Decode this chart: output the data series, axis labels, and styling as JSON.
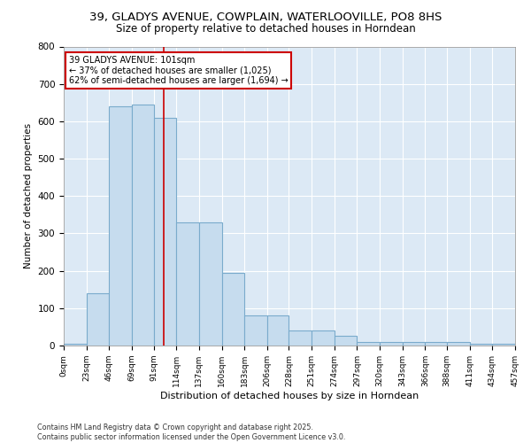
{
  "title_line1": "39, GLADYS AVENUE, COWPLAIN, WATERLOOVILLE, PO8 8HS",
  "title_line2": "Size of property relative to detached houses in Horndean",
  "xlabel": "Distribution of detached houses by size in Horndean",
  "ylabel": "Number of detached properties",
  "bin_edges": [
    0,
    23,
    46,
    69,
    91,
    114,
    137,
    160,
    183,
    206,
    228,
    251,
    274,
    297,
    320,
    343,
    366,
    388,
    411,
    434,
    457
  ],
  "bar_heights": [
    5,
    140,
    640,
    645,
    610,
    330,
    330,
    195,
    80,
    80,
    40,
    40,
    25,
    10,
    10,
    10,
    10,
    10,
    5,
    5
  ],
  "bar_color": "#c6dcee",
  "bar_edge_color": "#7aabcc",
  "red_line_x": 101,
  "annotation_text": "39 GLADYS AVENUE: 101sqm\n← 37% of detached houses are smaller (1,025)\n62% of semi-detached houses are larger (1,694) →",
  "annotation_box_color": "#ffffff",
  "annotation_box_edge_color": "#cc0000",
  "annotation_text_color": "#000000",
  "red_line_color": "#cc0000",
  "ylim": [
    0,
    800
  ],
  "yticks": [
    0,
    100,
    200,
    300,
    400,
    500,
    600,
    700,
    800
  ],
  "footer_line1": "Contains HM Land Registry data © Crown copyright and database right 2025.",
  "footer_line2": "Contains public sector information licensed under the Open Government Licence v3.0.",
  "background_color": "#dce9f5",
  "grid_color": "#ffffff",
  "fig_bg_color": "#ffffff"
}
